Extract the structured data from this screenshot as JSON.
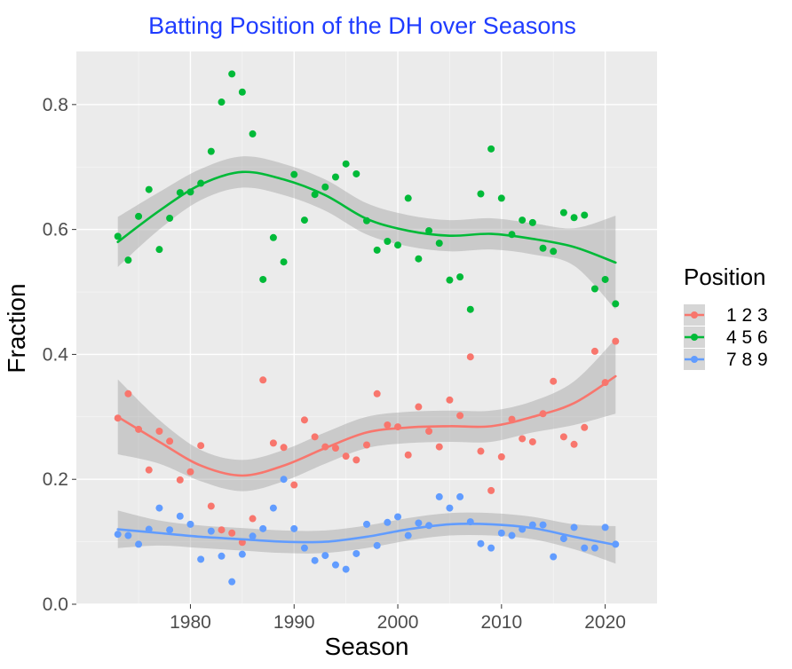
{
  "chart_data": {
    "type": "scatter",
    "title": "Batting Position of the DH over Seasons",
    "xlabel": "Season",
    "ylabel": "Fraction",
    "xlim": [
      1969,
      2025
    ],
    "ylim": [
      0,
      0.885
    ],
    "x_ticks": [
      1980,
      1990,
      2000,
      2010,
      2020
    ],
    "x_tick_labels": [
      "1980",
      "1990",
      "2000",
      "2010",
      "2020"
    ],
    "y_ticks": [
      0.0,
      0.2,
      0.4,
      0.6,
      0.8
    ],
    "y_tick_labels": [
      "0.0",
      "0.2",
      "0.4",
      "0.6",
      "0.8"
    ],
    "grid": true,
    "legend": {
      "title": "Position",
      "placement": "right"
    },
    "colors": {
      "title": "#1f3cff",
      "panel": "#ebebeb",
      "grid": "#ffffff",
      "band": "#999999"
    },
    "series": [
      {
        "name": "1 2 3",
        "color": "#f8766d",
        "points": [
          [
            1973,
            0.298
          ],
          [
            1974,
            0.337
          ],
          [
            1975,
            0.28
          ],
          [
            1976,
            0.215
          ],
          [
            1977,
            0.277
          ],
          [
            1978,
            0.261
          ],
          [
            1979,
            0.199
          ],
          [
            1980,
            0.212
          ],
          [
            1981,
            0.254
          ],
          [
            1982,
            0.157
          ],
          [
            1983,
            0.119
          ],
          [
            1984,
            0.114
          ],
          [
            1985,
            0.099
          ],
          [
            1986,
            0.137
          ],
          [
            1987,
            0.359
          ],
          [
            1988,
            0.258
          ],
          [
            1989,
            0.251
          ],
          [
            1990,
            0.191
          ],
          [
            1991,
            0.295
          ],
          [
            1992,
            0.268
          ],
          [
            1993,
            0.252
          ],
          [
            1994,
            0.25
          ],
          [
            1995,
            0.237
          ],
          [
            1996,
            0.231
          ],
          [
            1997,
            0.255
          ],
          [
            1998,
            0.337
          ],
          [
            1999,
            0.287
          ],
          [
            2000,
            0.284
          ],
          [
            2001,
            0.239
          ],
          [
            2002,
            0.316
          ],
          [
            2003,
            0.277
          ],
          [
            2004,
            0.252
          ],
          [
            2005,
            0.327
          ],
          [
            2006,
            0.302
          ],
          [
            2007,
            0.396
          ],
          [
            2008,
            0.245
          ],
          [
            2009,
            0.182
          ],
          [
            2010,
            0.236
          ],
          [
            2011,
            0.296
          ],
          [
            2012,
            0.265
          ],
          [
            2013,
            0.26
          ],
          [
            2014,
            0.305
          ],
          [
            2015,
            0.357
          ],
          [
            2016,
            0.268
          ],
          [
            2017,
            0.256
          ],
          [
            2018,
            0.283
          ],
          [
            2019,
            0.405
          ],
          [
            2020,
            0.355
          ],
          [
            2021,
            0.421
          ]
        ],
        "smooth": [
          [
            1973,
            0.3
          ],
          [
            1977,
            0.26
          ],
          [
            1981,
            0.222
          ],
          [
            1985,
            0.206
          ],
          [
            1989,
            0.222
          ],
          [
            1993,
            0.25
          ],
          [
            1997,
            0.275
          ],
          [
            2001,
            0.283
          ],
          [
            2005,
            0.285
          ],
          [
            2009,
            0.285
          ],
          [
            2013,
            0.3
          ],
          [
            2017,
            0.322
          ],
          [
            2021,
            0.365
          ]
        ],
        "band_half_width": [
          0.06,
          0.035,
          0.025,
          0.025,
          0.025,
          0.025,
          0.025,
          0.025,
          0.025,
          0.025,
          0.025,
          0.035,
          0.06
        ]
      },
      {
        "name": "4 5 6",
        "color": "#00ba38",
        "points": [
          [
            1973,
            0.589
          ],
          [
            1974,
            0.551
          ],
          [
            1975,
            0.621
          ],
          [
            1976,
            0.664
          ],
          [
            1977,
            0.568
          ],
          [
            1978,
            0.618
          ],
          [
            1979,
            0.659
          ],
          [
            1980,
            0.66
          ],
          [
            1981,
            0.674
          ],
          [
            1982,
            0.725
          ],
          [
            1983,
            0.804
          ],
          [
            1984,
            0.849
          ],
          [
            1985,
            0.82
          ],
          [
            1986,
            0.753
          ],
          [
            1987,
            0.52
          ],
          [
            1988,
            0.587
          ],
          [
            1989,
            0.548
          ],
          [
            1990,
            0.688
          ],
          [
            1991,
            0.615
          ],
          [
            1992,
            0.656
          ],
          [
            1993,
            0.668
          ],
          [
            1994,
            0.684
          ],
          [
            1995,
            0.705
          ],
          [
            1996,
            0.689
          ],
          [
            1997,
            0.614
          ],
          [
            1998,
            0.567
          ],
          [
            1999,
            0.581
          ],
          [
            2000,
            0.575
          ],
          [
            2001,
            0.65
          ],
          [
            2002,
            0.553
          ],
          [
            2003,
            0.598
          ],
          [
            2004,
            0.578
          ],
          [
            2005,
            0.519
          ],
          [
            2006,
            0.524
          ],
          [
            2007,
            0.472
          ],
          [
            2008,
            0.657
          ],
          [
            2009,
            0.729
          ],
          [
            2010,
            0.65
          ],
          [
            2011,
            0.592
          ],
          [
            2012,
            0.615
          ],
          [
            2013,
            0.611
          ],
          [
            2014,
            0.57
          ],
          [
            2015,
            0.565
          ],
          [
            2016,
            0.627
          ],
          [
            2017,
            0.619
          ],
          [
            2018,
            0.623
          ],
          [
            2019,
            0.505
          ],
          [
            2020,
            0.52
          ],
          [
            2021,
            0.481
          ]
        ],
        "smooth": [
          [
            1973,
            0.58
          ],
          [
            1977,
            0.63
          ],
          [
            1981,
            0.672
          ],
          [
            1985,
            0.692
          ],
          [
            1989,
            0.68
          ],
          [
            1993,
            0.655
          ],
          [
            1997,
            0.617
          ],
          [
            2001,
            0.598
          ],
          [
            2005,
            0.59
          ],
          [
            2009,
            0.593
          ],
          [
            2013,
            0.585
          ],
          [
            2017,
            0.572
          ],
          [
            2021,
            0.547
          ]
        ],
        "band_half_width": [
          0.04,
          0.03,
          0.025,
          0.025,
          0.025,
          0.025,
          0.025,
          0.025,
          0.025,
          0.025,
          0.025,
          0.03,
          0.075
        ]
      },
      {
        "name": "7 8 9",
        "color": "#619cff",
        "points": [
          [
            1973,
            0.112
          ],
          [
            1974,
            0.11
          ],
          [
            1975,
            0.096
          ],
          [
            1976,
            0.12
          ],
          [
            1977,
            0.154
          ],
          [
            1978,
            0.119
          ],
          [
            1979,
            0.141
          ],
          [
            1980,
            0.128
          ],
          [
            1981,
            0.072
          ],
          [
            1982,
            0.117
          ],
          [
            1983,
            0.077
          ],
          [
            1984,
            0.036
          ],
          [
            1985,
            0.08
          ],
          [
            1986,
            0.109
          ],
          [
            1987,
            0.121
          ],
          [
            1988,
            0.154
          ],
          [
            1989,
            0.2
          ],
          [
            1990,
            0.121
          ],
          [
            1991,
            0.09
          ],
          [
            1992,
            0.07
          ],
          [
            1993,
            0.078
          ],
          [
            1994,
            0.063
          ],
          [
            1995,
            0.056
          ],
          [
            1996,
            0.081
          ],
          [
            1997,
            0.128
          ],
          [
            1998,
            0.094
          ],
          [
            1999,
            0.131
          ],
          [
            2000,
            0.14
          ],
          [
            2001,
            0.11
          ],
          [
            2002,
            0.13
          ],
          [
            2003,
            0.126
          ],
          [
            2004,
            0.172
          ],
          [
            2005,
            0.154
          ],
          [
            2006,
            0.172
          ],
          [
            2007,
            0.132
          ],
          [
            2008,
            0.097
          ],
          [
            2009,
            0.09
          ],
          [
            2010,
            0.114
          ],
          [
            2011,
            0.11
          ],
          [
            2012,
            0.12
          ],
          [
            2013,
            0.127
          ],
          [
            2014,
            0.127
          ],
          [
            2015,
            0.076
          ],
          [
            2016,
            0.105
          ],
          [
            2017,
            0.123
          ],
          [
            2018,
            0.09
          ],
          [
            2019,
            0.09
          ],
          [
            2020,
            0.123
          ],
          [
            2021,
            0.096
          ]
        ],
        "smooth": [
          [
            1973,
            0.12
          ],
          [
            1977,
            0.114
          ],
          [
            1981,
            0.108
          ],
          [
            1985,
            0.104
          ],
          [
            1989,
            0.1
          ],
          [
            1993,
            0.1
          ],
          [
            1997,
            0.108
          ],
          [
            2001,
            0.12
          ],
          [
            2005,
            0.128
          ],
          [
            2009,
            0.128
          ],
          [
            2013,
            0.122
          ],
          [
            2017,
            0.108
          ],
          [
            2021,
            0.095
          ]
        ],
        "band_half_width": [
          0.03,
          0.02,
          0.018,
          0.018,
          0.018,
          0.018,
          0.018,
          0.018,
          0.018,
          0.018,
          0.018,
          0.02,
          0.03
        ]
      }
    ]
  }
}
